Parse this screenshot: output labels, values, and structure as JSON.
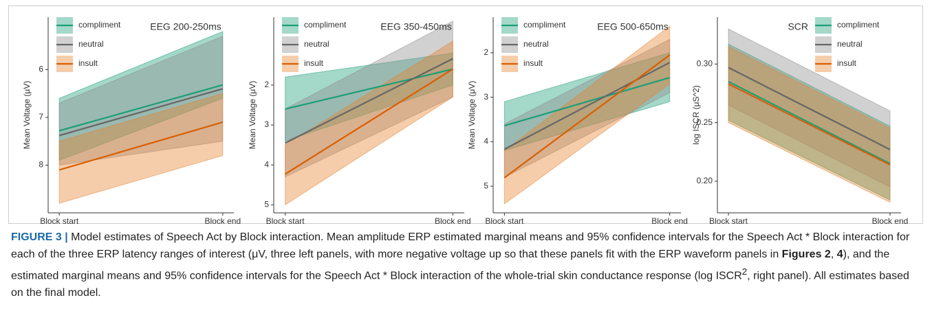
{
  "chart_data": [
    {
      "type": "line_band",
      "title": "EEG 200-250ms",
      "y_label": "Mean Voltage (μV)",
      "y_reversed": true,
      "legend_position": "top-left",
      "categories": [
        "Block start",
        "Block end"
      ],
      "ylim": [
        4.9,
        9.0
      ],
      "yticks": [
        6,
        7,
        8
      ],
      "series": [
        {
          "name": "compliment",
          "color": "#1b9e77",
          "band_color": "#1b9e77",
          "values": [
            7.28,
            6.32
          ],
          "lower": [
            6.6,
            5.2
          ],
          "upper": [
            7.9,
            6.6
          ]
        },
        {
          "name": "neutral",
          "color": "#666666",
          "band_color": "#8c8c8c",
          "values": [
            7.38,
            6.4
          ],
          "lower": [
            6.7,
            5.3
          ],
          "upper": [
            8.0,
            7.5
          ]
        },
        {
          "name": "insult",
          "color": "#d95f02",
          "band_color": "#e6822e",
          "values": [
            8.1,
            7.1
          ],
          "lower": [
            7.5,
            6.5
          ],
          "upper": [
            8.8,
            7.8
          ]
        }
      ]
    },
    {
      "type": "line_band",
      "title": "EEG 350-450ms",
      "y_label": "Mean Voltage (μV)",
      "y_reversed": true,
      "legend_position": "top-left",
      "categories": [
        "Block start",
        "Block end"
      ],
      "ylim": [
        0.3,
        5.2
      ],
      "yticks": [
        2,
        3,
        4,
        5
      ],
      "series": [
        {
          "name": "compliment",
          "color": "#1b9e77",
          "band_color": "#1b9e77",
          "values": [
            2.6,
            1.6
          ],
          "lower": [
            1.8,
            1.2
          ],
          "upper": [
            3.4,
            2.0
          ]
        },
        {
          "name": "neutral",
          "color": "#666666",
          "band_color": "#8c8c8c",
          "values": [
            3.45,
            1.34
          ],
          "lower": [
            2.6,
            0.4
          ],
          "upper": [
            4.3,
            2.3
          ]
        },
        {
          "name": "insult",
          "color": "#d95f02",
          "band_color": "#e6822e",
          "values": [
            4.23,
            1.6
          ],
          "lower": [
            3.5,
            0.9
          ],
          "upper": [
            5.0,
            2.3
          ]
        }
      ]
    },
    {
      "type": "line_band",
      "title": "EEG 500-650ms",
      "y_label": "Mean Voltage (μV)",
      "y_reversed": true,
      "legend_position": "top-left",
      "categories": [
        "Block start",
        "Block end"
      ],
      "ylim": [
        1.2,
        5.6
      ],
      "yticks": [
        2,
        3,
        4,
        5
      ],
      "series": [
        {
          "name": "compliment",
          "color": "#1b9e77",
          "band_color": "#1b9e77",
          "values": [
            3.64,
            2.56
          ],
          "lower": [
            3.1,
            2.0
          ],
          "upper": [
            4.2,
            3.1
          ]
        },
        {
          "name": "neutral",
          "color": "#666666",
          "band_color": "#8c8c8c",
          "values": [
            4.17,
            2.22
          ],
          "lower": [
            3.6,
            1.7
          ],
          "upper": [
            4.8,
            2.9
          ]
        },
        {
          "name": "insult",
          "color": "#d95f02",
          "band_color": "#e6822e",
          "values": [
            4.81,
            2.05
          ],
          "lower": [
            4.2,
            1.4
          ],
          "upper": [
            5.4,
            2.7
          ]
        }
      ]
    },
    {
      "type": "line_band",
      "title": "SCR",
      "y_label": "log ISCR (μS^2)",
      "y_reversed": false,
      "legend_position": "top-right",
      "categories": [
        "Block start",
        "Block end"
      ],
      "ylim": [
        0.173,
        0.34
      ],
      "yticks": [
        {
          "value": 0.2,
          "label": "0.20"
        },
        {
          "value": 0.25,
          "label": "0.25"
        },
        {
          "value": 0.3,
          "label": "0.30"
        }
      ],
      "series": [
        {
          "name": "compliment",
          "color": "#1b9e77",
          "band_color": "#1b9e77",
          "values": [
            0.285,
            0.215
          ],
          "lower": [
            0.252,
            0.184
          ],
          "upper": [
            0.317,
            0.247
          ]
        },
        {
          "name": "neutral",
          "color": "#666666",
          "band_color": "#8c8c8c",
          "values": [
            0.297,
            0.227
          ],
          "lower": [
            0.265,
            0.195
          ],
          "upper": [
            0.33,
            0.26
          ]
        },
        {
          "name": "insult",
          "color": "#d95f02",
          "band_color": "#e6822e",
          "values": [
            0.283,
            0.214
          ],
          "lower": [
            0.25,
            0.182
          ],
          "upper": [
            0.315,
            0.245
          ]
        }
      ]
    }
  ],
  "caption": [
    "FIGURE 3 |",
    " Model estimates of Speech Act by Block interaction. Mean amplitude ERP estimated marginal means and 95% confidence intervals for the Speech Act * Block interaction for each of the three ERP latency ranges of interest (μV, three left panels, with more negative voltage up so that these panels fit with the ERP waveform panels in ",
    "Figures 2",
    ", ",
    "4",
    "), and the estimated marginal means and 95% confidence intervals for the Speech Act * Block interaction of the whole-trial skin conductance response (log ISCR",
    "2",
    ", right panel). All estimates based on the final model."
  ]
}
